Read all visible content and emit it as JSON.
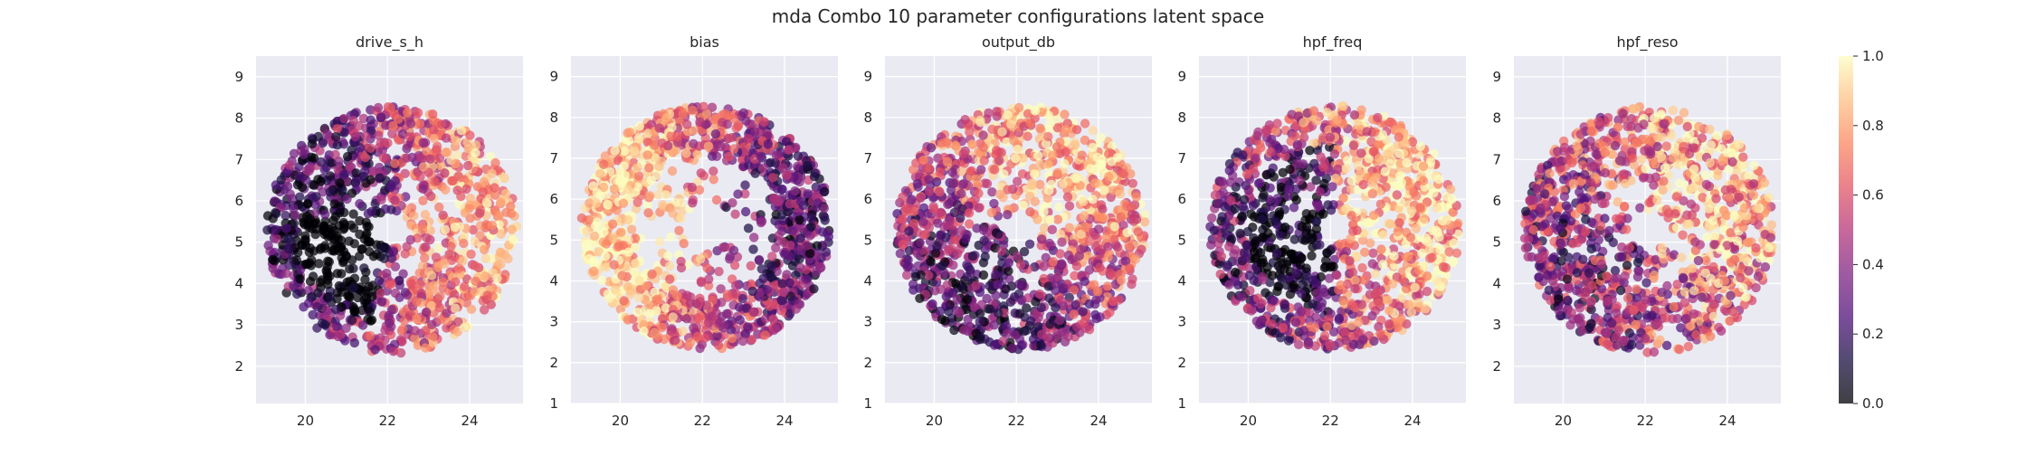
{
  "figure": {
    "suptitle": "mda Combo 10 parameter configurations latent space"
  },
  "colorbar": {
    "colormap": "magma",
    "range": [
      0.0,
      1.0
    ],
    "ticks": [
      "0.0",
      "0.2",
      "0.4",
      "0.6",
      "0.8",
      "1.0"
    ]
  },
  "chart_data": [
    {
      "type": "scatter",
      "title": "drive_s_h",
      "xlabel": "",
      "ylabel": "",
      "xlim": [
        18.8,
        25.3
      ],
      "ylim": [
        1.1,
        9.5
      ],
      "x_ticks": [
        "20",
        "22",
        "24"
      ],
      "y_ticks": [
        "2",
        "3",
        "4",
        "5",
        "6",
        "7",
        "8",
        "9"
      ],
      "grid": true,
      "ring": {
        "cx": 22.1,
        "cy": 5.3,
        "r_outer": 3.05,
        "r_inner": 1.25
      },
      "color_note": "point color encodes parameter value 0-1; dark points concentrated lower-left inside the ring"
    },
    {
      "type": "scatter",
      "title": "bias",
      "xlabel": "",
      "ylabel": "",
      "xlim": [
        18.8,
        25.3
      ],
      "ylim": [
        1.0,
        9.5
      ],
      "x_ticks": [
        "20",
        "22",
        "24"
      ],
      "y_ticks": [
        "1",
        "2",
        "3",
        "4",
        "5",
        "6",
        "7",
        "8",
        "9"
      ],
      "grid": true,
      "ring": {
        "cx": 22.1,
        "cy": 5.3,
        "r_outer": 3.05,
        "r_inner": 1.75
      },
      "color_note": "light points on left side, darker purple on right side"
    },
    {
      "type": "scatter",
      "title": "output_db",
      "xlabel": "",
      "ylabel": "",
      "xlim": [
        18.8,
        25.3
      ],
      "ylim": [
        1.0,
        9.5
      ],
      "x_ticks": [
        "20",
        "22",
        "24"
      ],
      "y_ticks": [
        "1",
        "2",
        "3",
        "4",
        "5",
        "6",
        "7",
        "8",
        "9"
      ],
      "grid": true,
      "ring": {
        "cx": 22.1,
        "cy": 5.3,
        "r_outer": 3.05,
        "r_inner": 1.3
      },
      "color_note": "light points top-right, darker points lower-left"
    },
    {
      "type": "scatter",
      "title": "hpf_freq",
      "xlabel": "",
      "ylabel": "",
      "xlim": [
        18.8,
        25.3
      ],
      "ylim": [
        1.0,
        9.5
      ],
      "x_ticks": [
        "20",
        "22",
        "24"
      ],
      "y_ticks": [
        "1",
        "2",
        "3",
        "4",
        "5",
        "6",
        "7",
        "8",
        "9"
      ],
      "grid": true,
      "ring": {
        "cx": 22.1,
        "cy": 5.3,
        "r_outer": 3.05,
        "r_inner": 1.2
      },
      "color_note": "light points on right side, dark points left-center"
    },
    {
      "type": "scatter",
      "title": "hpf_reso",
      "xlabel": "",
      "ylabel": "",
      "xlim": [
        18.8,
        25.3
      ],
      "ylim": [
        1.1,
        9.5
      ],
      "x_ticks": [
        "20",
        "22",
        "24"
      ],
      "y_ticks": [
        "2",
        "3",
        "4",
        "5",
        "6",
        "7",
        "8",
        "9"
      ],
      "grid": true,
      "ring": {
        "cx": 22.1,
        "cy": 5.3,
        "r_outer": 3.05,
        "r_inner": 1.4
      },
      "color_note": "mixed colors, light points mostly right side, dark points bottom"
    }
  ]
}
